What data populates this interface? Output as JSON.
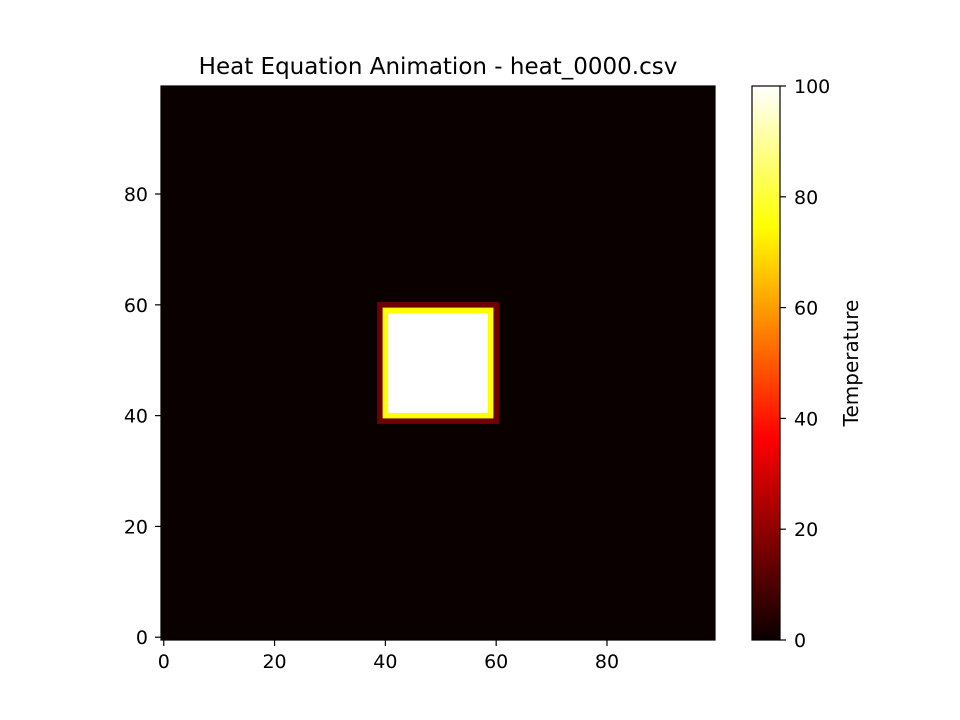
{
  "chart_data": {
    "type": "heatmap",
    "title": "Heat Equation Animation - heat_0000.csv",
    "xlabel": "",
    "ylabel": "",
    "xlim": [
      0,
      99
    ],
    "ylim": [
      0,
      99
    ],
    "xticks": [
      0,
      20,
      40,
      60,
      80
    ],
    "yticks": [
      0,
      20,
      40,
      60,
      80
    ],
    "grid": false,
    "grid_size": [
      100,
      100
    ],
    "background_value": 0,
    "regions": [
      {
        "x": [
          39,
          60
        ],
        "y": [
          39,
          60
        ],
        "value": 15
      },
      {
        "x": [
          40,
          59
        ],
        "y": [
          40,
          59
        ],
        "value": 75
      },
      {
        "x": [
          41,
          58
        ],
        "y": [
          41,
          58
        ],
        "value": 100
      }
    ],
    "colormap": "hot",
    "colorbar": {
      "label": "Temperature",
      "range": [
        0,
        100
      ],
      "ticks": [
        0,
        20,
        40,
        60,
        80,
        100
      ]
    }
  }
}
